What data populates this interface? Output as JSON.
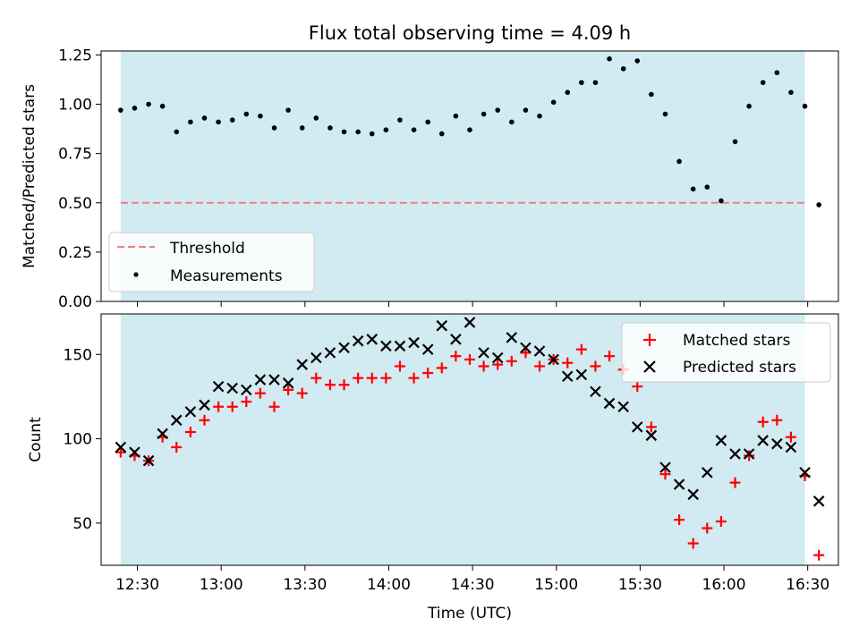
{
  "chart_data": [
    {
      "type": "scatter",
      "title": "Flux total observing time = 4.09 h",
      "xlabel": "",
      "ylabel": "Matched/Predicted stars",
      "ylim": [
        0,
        1.27
      ],
      "yticks": [
        0.0,
        0.25,
        0.5,
        0.75,
        1.0,
        1.25
      ],
      "ytick_labels": [
        "0.00",
        "0.25",
        "0.50",
        "0.75",
        "1.00",
        "1.25"
      ],
      "shaded_span_utc": [
        "12:24",
        "16:29"
      ],
      "shade_color": "#add8e6",
      "threshold": 0.5,
      "legend_position": "lower-left",
      "legend": [
        {
          "label": "Threshold",
          "style": "dashed-line",
          "color": "#f08080"
        },
        {
          "label": "Measurements",
          "style": "dot",
          "color": "#000000"
        }
      ],
      "series": [
        {
          "name": "Measurements",
          "color": "#000000",
          "x": [
            "12:24",
            "12:29",
            "12:34",
            "12:39",
            "12:44",
            "12:49",
            "12:54",
            "12:59",
            "13:04",
            "13:09",
            "13:14",
            "13:19",
            "13:24",
            "13:29",
            "13:34",
            "13:39",
            "13:44",
            "13:49",
            "13:54",
            "13:59",
            "14:04",
            "14:09",
            "14:14",
            "14:19",
            "14:24",
            "14:29",
            "14:34",
            "14:39",
            "14:44",
            "14:49",
            "14:54",
            "14:59",
            "15:04",
            "15:09",
            "15:14",
            "15:19",
            "15:24",
            "15:29",
            "15:34",
            "15:39",
            "15:44",
            "15:49",
            "15:54",
            "15:59",
            "16:04",
            "16:09",
            "16:14",
            "16:19",
            "16:24",
            "16:29",
            "16:34"
          ],
          "y": [
            0.97,
            0.98,
            1.0,
            0.99,
            0.86,
            0.91,
            0.93,
            0.91,
            0.92,
            0.95,
            0.94,
            0.88,
            0.97,
            0.88,
            0.93,
            0.88,
            0.86,
            0.86,
            0.85,
            0.87,
            0.92,
            0.87,
            0.91,
            0.85,
            0.94,
            0.87,
            0.95,
            0.97,
            0.91,
            0.97,
            0.94,
            1.01,
            1.06,
            1.11,
            1.11,
            1.23,
            1.18,
            1.22,
            1.05,
            0.95,
            0.71,
            0.57,
            0.58,
            0.51,
            0.81,
            0.99,
            1.11,
            1.16,
            1.06,
            0.99,
            0.49
          ]
        }
      ]
    },
    {
      "type": "scatter",
      "title": "",
      "xlabel": "Time (UTC)",
      "ylabel": "Count",
      "ylim": [
        25,
        174
      ],
      "yticks": [
        50,
        100,
        150
      ],
      "ytick_labels": [
        "50",
        "100",
        "150"
      ],
      "xticks_utc": [
        "12:30",
        "13:00",
        "13:30",
        "14:00",
        "14:30",
        "15:00",
        "15:30",
        "16:00",
        "16:30"
      ],
      "xtick_labels": [
        "12:30",
        "13:00",
        "13:30",
        "14:00",
        "14:30",
        "15:00",
        "15:30",
        "16:00",
        "16:30"
      ],
      "shaded_span_utc": [
        "12:24",
        "16:29"
      ],
      "shade_color": "#add8e6",
      "legend_position": "upper-right",
      "legend": [
        {
          "label": "Matched stars",
          "marker": "plus",
          "color": "#ff0000"
        },
        {
          "label": "Predicted stars",
          "marker": "x",
          "color": "#000000"
        }
      ],
      "x": [
        "12:24",
        "12:29",
        "12:34",
        "12:39",
        "12:44",
        "12:49",
        "12:54",
        "12:59",
        "13:04",
        "13:09",
        "13:14",
        "13:19",
        "13:24",
        "13:29",
        "13:34",
        "13:39",
        "13:44",
        "13:49",
        "13:54",
        "13:59",
        "14:04",
        "14:09",
        "14:14",
        "14:19",
        "14:24",
        "14:29",
        "14:34",
        "14:39",
        "14:44",
        "14:49",
        "14:54",
        "14:59",
        "15:04",
        "15:09",
        "15:14",
        "15:19",
        "15:24",
        "15:29",
        "15:34",
        "15:39",
        "15:44",
        "15:49",
        "15:54",
        "15:59",
        "16:04",
        "16:09",
        "16:14",
        "16:19",
        "16:24",
        "16:29",
        "16:34"
      ],
      "series": [
        {
          "name": "Matched stars",
          "marker": "plus",
          "color": "#ff0000",
          "values": [
            92,
            90,
            87,
            101,
            95,
            104,
            111,
            119,
            119,
            122,
            127,
            119,
            129,
            127,
            136,
            132,
            132,
            136,
            136,
            136,
            143,
            136,
            139,
            142,
            149,
            147,
            143,
            144,
            146,
            151,
            143,
            147,
            145,
            153,
            143,
            149,
            141,
            131,
            107,
            79,
            52,
            38,
            47,
            51,
            74,
            90,
            110,
            111,
            101,
            78,
            31
          ]
        },
        {
          "name": "Predicted stars",
          "marker": "x",
          "color": "#000000",
          "values": [
            95,
            92,
            87,
            103,
            111,
            116,
            120,
            131,
            130,
            129,
            135,
            135,
            133,
            144,
            148,
            151,
            154,
            158,
            159,
            155,
            155,
            157,
            153,
            167,
            159,
            169,
            151,
            148,
            160,
            154,
            152,
            147,
            137,
            138,
            128,
            121,
            119,
            107,
            102,
            83,
            73,
            67,
            80,
            99,
            91,
            91,
            99,
            97,
            95,
            80,
            63
          ]
        }
      ]
    }
  ]
}
